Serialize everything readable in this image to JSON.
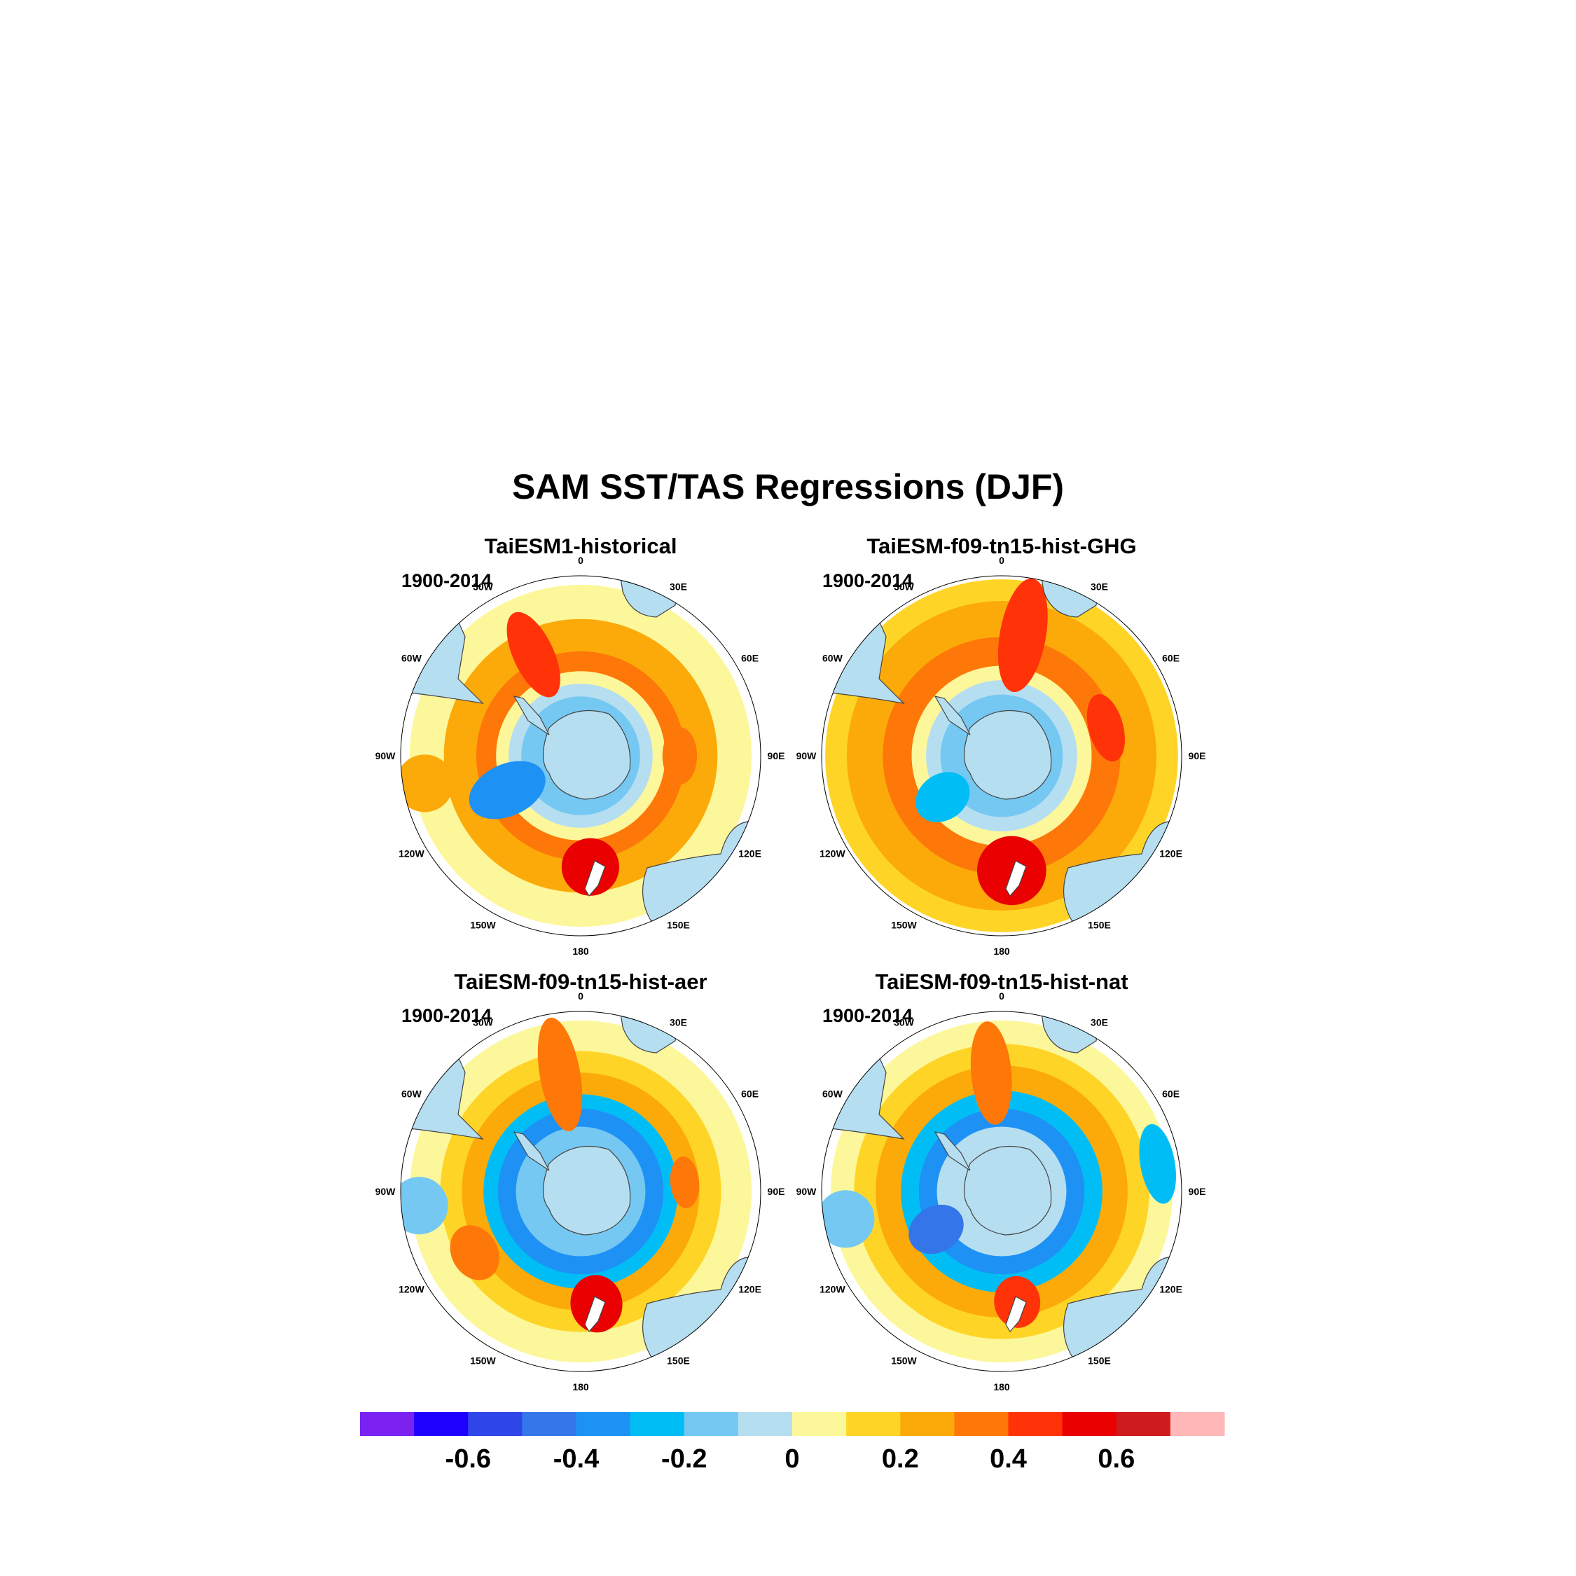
{
  "title": "SAM SST/TAS Regressions (DJF)",
  "lon_labels": [
    "0",
    "30E",
    "60E",
    "90E",
    "120E",
    "150E",
    "180",
    "150W",
    "120W",
    "90W",
    "60W",
    "30W"
  ],
  "panels": [
    {
      "title": "TaiESM1-historical",
      "period": "1900-2014",
      "rings": [
        {
          "r": 0.95,
          "level": 0.0
        },
        {
          "r": 0.76,
          "level": 0.2
        },
        {
          "r": 0.58,
          "level": 0.3
        },
        {
          "r": 0.47,
          "level": 0.0
        },
        {
          "r": 0.4,
          "level": -0.1
        },
        {
          "r": 0.33,
          "level": -0.2
        }
      ],
      "blobs": [
        {
          "lon": -25,
          "d": 0.62,
          "sx": 0.16,
          "sy": 0.07,
          "level": 0.4
        },
        {
          "lon": 175,
          "d": 0.62,
          "sx": 0.1,
          "sy": 0.1,
          "level": 0.5
        },
        {
          "lon": -115,
          "d": 0.45,
          "sx": 0.14,
          "sy": 0.09,
          "level": -0.4
        },
        {
          "lon": 90,
          "d": 0.55,
          "sx": 0.06,
          "sy": 0.1,
          "level": 0.3
        },
        {
          "lon": -100,
          "d": 0.88,
          "sx": 0.1,
          "sy": 0.1,
          "level": 0.2
        }
      ]
    },
    {
      "title": "TaiESM-f09-tn15-hist-GHG",
      "period": "1900-2014",
      "rings": [
        {
          "r": 0.98,
          "level": 0.1
        },
        {
          "r": 0.86,
          "level": 0.2
        },
        {
          "r": 0.66,
          "level": 0.3
        },
        {
          "r": 0.5,
          "level": 0.0
        },
        {
          "r": 0.42,
          "level": -0.1
        },
        {
          "r": 0.34,
          "level": -0.2
        }
      ],
      "blobs": [
        {
          "lon": 10,
          "d": 0.68,
          "sx": 0.2,
          "sy": 0.08,
          "level": 0.4
        },
        {
          "lon": 175,
          "d": 0.64,
          "sx": 0.12,
          "sy": 0.12,
          "level": 0.5
        },
        {
          "lon": 75,
          "d": 0.6,
          "sx": 0.06,
          "sy": 0.12,
          "level": 0.4
        },
        {
          "lon": -125,
          "d": 0.4,
          "sx": 0.1,
          "sy": 0.08,
          "level": -0.3
        }
      ]
    },
    {
      "title": "TaiESM-f09-tn15-hist-aer",
      "period": "1900-2014",
      "rings": [
        {
          "r": 0.95,
          "level": 0.0
        },
        {
          "r": 0.78,
          "level": 0.1
        },
        {
          "r": 0.66,
          "level": 0.2
        },
        {
          "r": 0.54,
          "level": -0.3
        },
        {
          "r": 0.46,
          "level": -0.4
        },
        {
          "r": 0.36,
          "level": -0.2
        }
      ],
      "blobs": [
        {
          "lon": -10,
          "d": 0.66,
          "sx": 0.2,
          "sy": 0.07,
          "level": 0.3
        },
        {
          "lon": 172,
          "d": 0.63,
          "sx": 0.1,
          "sy": 0.09,
          "level": 0.5
        },
        {
          "lon": 85,
          "d": 0.58,
          "sx": 0.05,
          "sy": 0.09,
          "level": 0.3
        },
        {
          "lon": -95,
          "d": 0.9,
          "sx": 0.1,
          "sy": 0.1,
          "level": -0.2
        },
        {
          "lon": -120,
          "d": 0.68,
          "sx": 0.08,
          "sy": 0.1,
          "level": 0.3
        }
      ]
    },
    {
      "title": "TaiESM-f09-tn15-hist-nat",
      "period": "1900-2014",
      "rings": [
        {
          "r": 0.95,
          "level": 0.0
        },
        {
          "r": 0.82,
          "level": 0.1
        },
        {
          "r": 0.7,
          "level": 0.2
        },
        {
          "r": 0.56,
          "level": -0.3
        },
        {
          "r": 0.46,
          "level": -0.4
        },
        {
          "r": 0.36,
          "level": -0.1
        }
      ],
      "blobs": [
        {
          "lon": -5,
          "d": 0.66,
          "sx": 0.18,
          "sy": 0.07,
          "level": 0.3
        },
        {
          "lon": 172,
          "d": 0.62,
          "sx": 0.09,
          "sy": 0.08,
          "level": 0.4
        },
        {
          "lon": -120,
          "d": 0.42,
          "sx": 0.1,
          "sy": 0.08,
          "level": -0.5
        },
        {
          "lon": 80,
          "d": 0.88,
          "sx": 0.06,
          "sy": 0.14,
          "level": -0.3
        },
        {
          "lon": -100,
          "d": 0.88,
          "sx": 0.1,
          "sy": 0.1,
          "level": -0.2
        }
      ]
    }
  ],
  "colorbar": {
    "levels": [
      -0.7,
      -0.6,
      -0.5,
      -0.4,
      -0.3,
      -0.2,
      -0.1,
      0,
      0.1,
      0.2,
      0.3,
      0.4,
      0.5,
      0.6,
      0.7
    ],
    "colors": [
      "#7b22f0",
      "#1e00ff",
      "#2e46e8",
      "#3575ea",
      "#1e91f5",
      "#00bef5",
      "#75c8f2",
      "#b6def1",
      "#fdf79b",
      "#fed526",
      "#fcaa0a",
      "#fd7809",
      "#ff3208",
      "#ea0000",
      "#cd1b1e",
      "#ffb7b7"
    ],
    "tick_labels": [
      "-0.6",
      "-0.4",
      "-0.2",
      "0",
      "0.2",
      "0.4",
      "0.6"
    ],
    "tick_values": [
      -0.6,
      -0.4,
      -0.2,
      0,
      0.2,
      0.4,
      0.6
    ]
  }
}
